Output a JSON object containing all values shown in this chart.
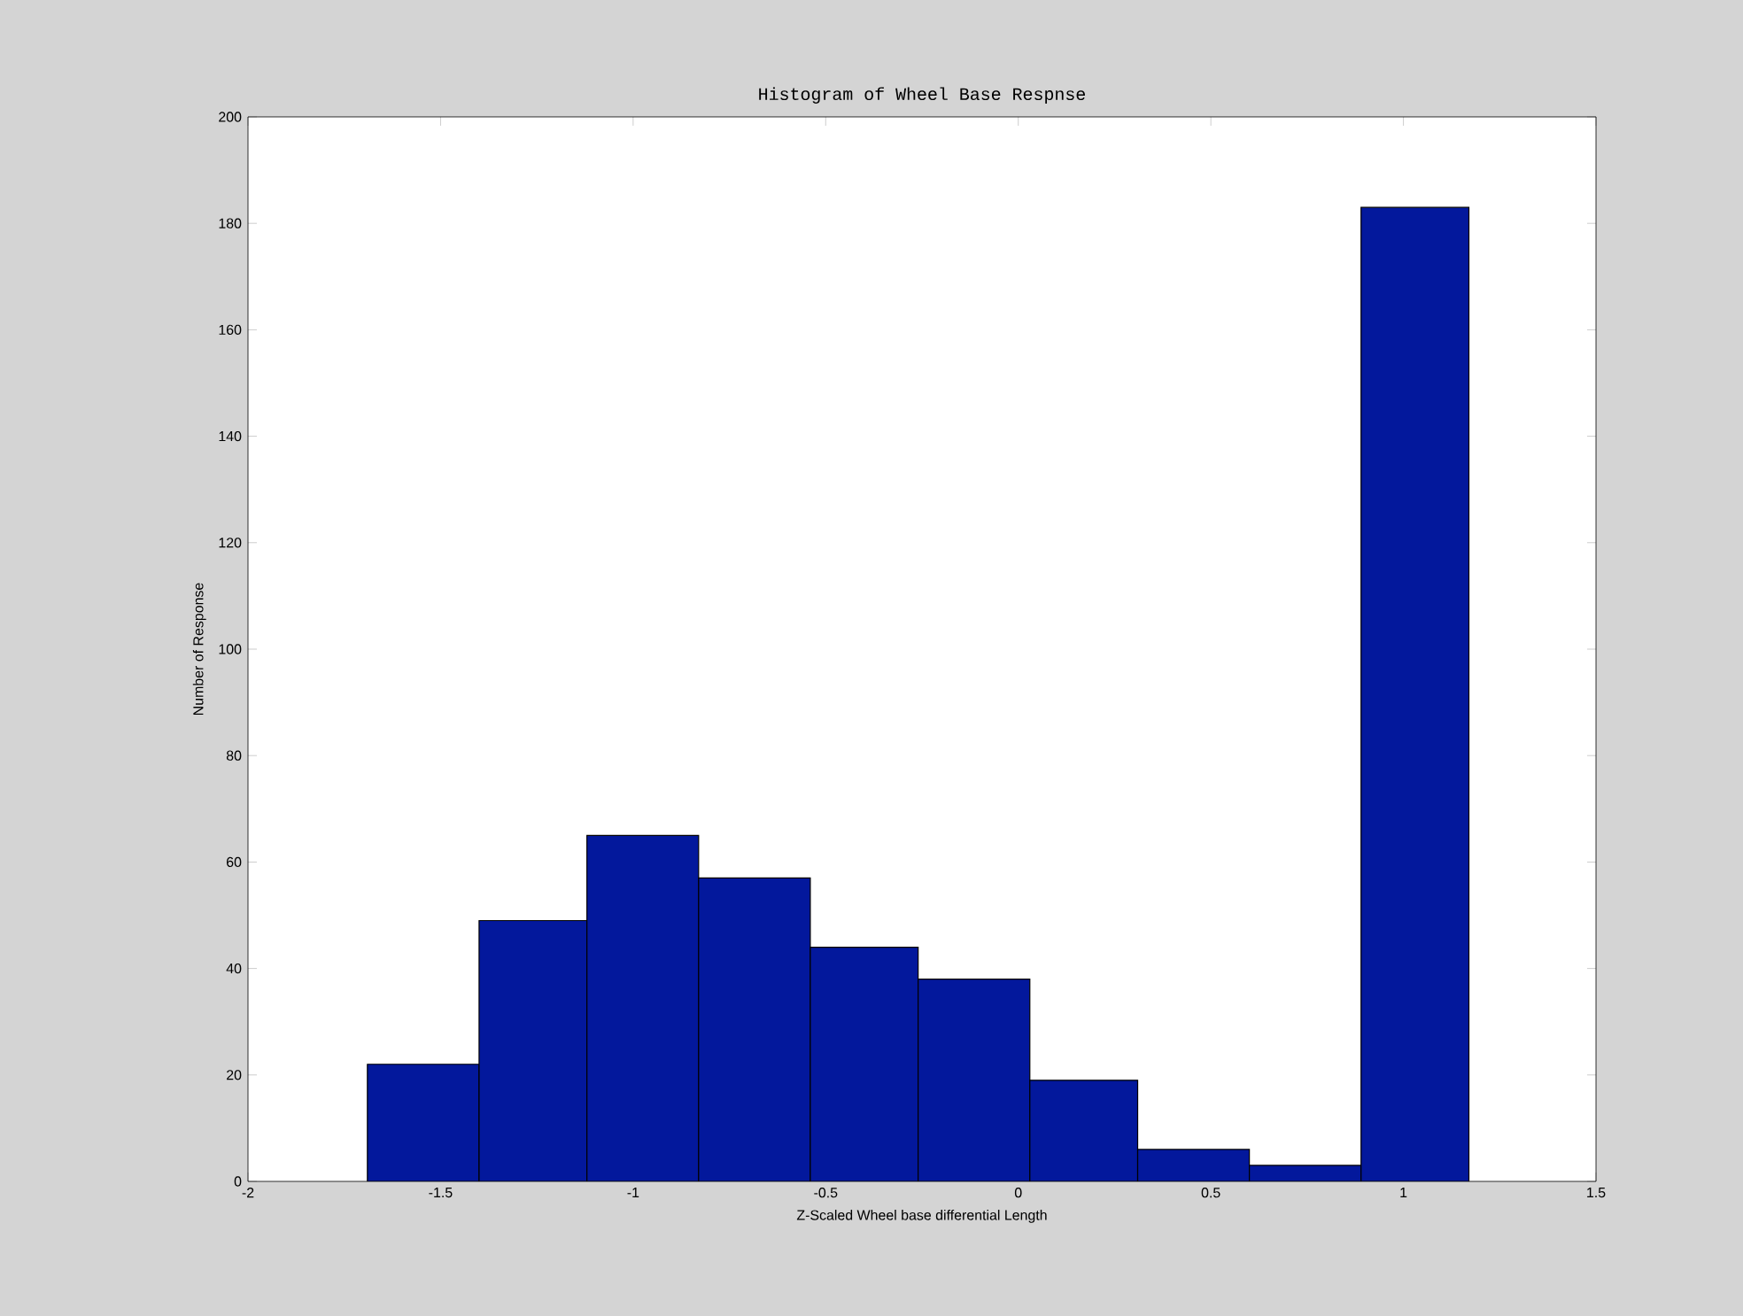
{
  "chart_data": {
    "type": "histogram",
    "title": "Histogram of Wheel Base Respnse",
    "xlabel": "Z-Scaled Wheel base differential Length",
    "ylabel": "Number of Response",
    "bins": [
      -1.69,
      -1.4,
      -1.12,
      -0.83,
      -0.54,
      -0.26,
      0.03,
      0.31,
      0.6,
      0.89,
      1.17
    ],
    "values": [
      22,
      49,
      65,
      57,
      44,
      38,
      19,
      6,
      3,
      183
    ],
    "color": "#03189c",
    "xlim": [
      -2,
      1.5
    ],
    "xticks": [
      -2,
      -1.5,
      -1,
      -0.5,
      0,
      0.5,
      1,
      1.5
    ],
    "ylim": [
      0,
      200
    ],
    "yticks": [
      0,
      20,
      40,
      60,
      80,
      100,
      120,
      140,
      160,
      180,
      200
    ],
    "grid": false
  }
}
